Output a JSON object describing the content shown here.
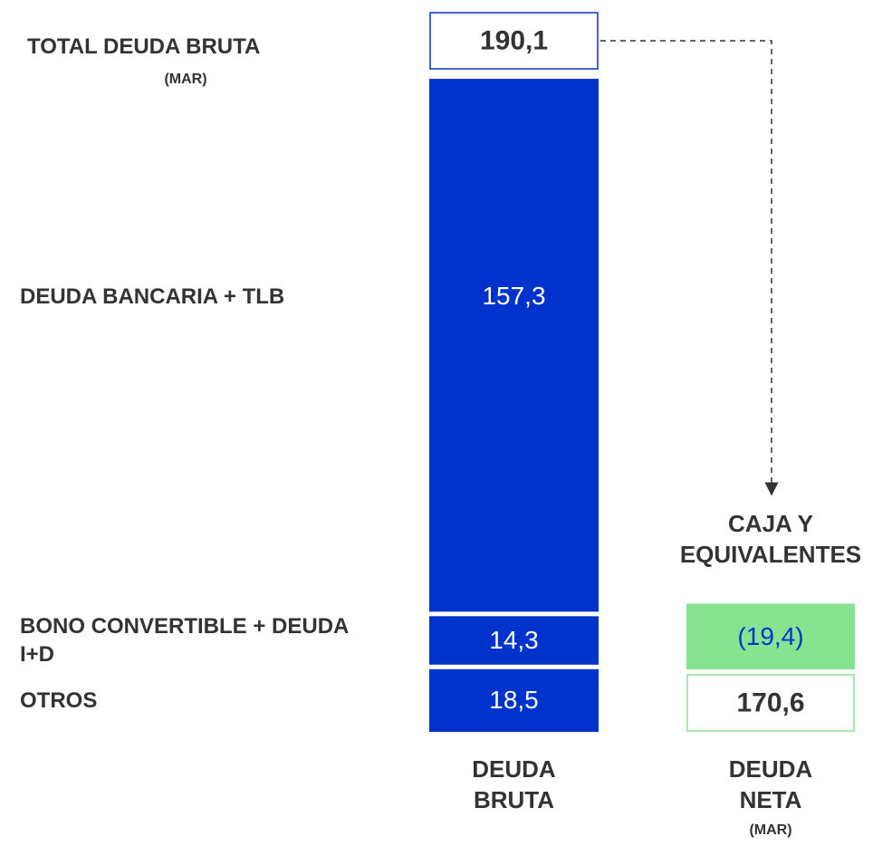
{
  "chart_data": {
    "type": "stacked_bar",
    "bar_label": "DEUDA BRUTA",
    "color": "#0033cc",
    "total": {
      "label": "TOTAL DEUDA BRUTA",
      "sublabel": "(MAR)",
      "value": 190.1,
      "value_label": "190,1"
    },
    "segments": [
      {
        "name": "DEUDA BANCARIA + TLB",
        "value": 157.3,
        "value_label": "157,3"
      },
      {
        "name": "BONO  CONVERTIBLE + DEUDA I+D",
        "value": 14.3,
        "value_label": "14,3"
      },
      {
        "name": "OTROS",
        "value": 18.5,
        "value_label": "18,5"
      }
    ],
    "cash": {
      "label": "CAJA Y EQUIVALENTES",
      "value": -19.4,
      "value_label": "(19,4)",
      "color": "#86e38f"
    },
    "net": {
      "label": "DEUDA NETA",
      "sublabel": "(MAR)",
      "value": 170.6,
      "value_label": "170,6"
    }
  }
}
